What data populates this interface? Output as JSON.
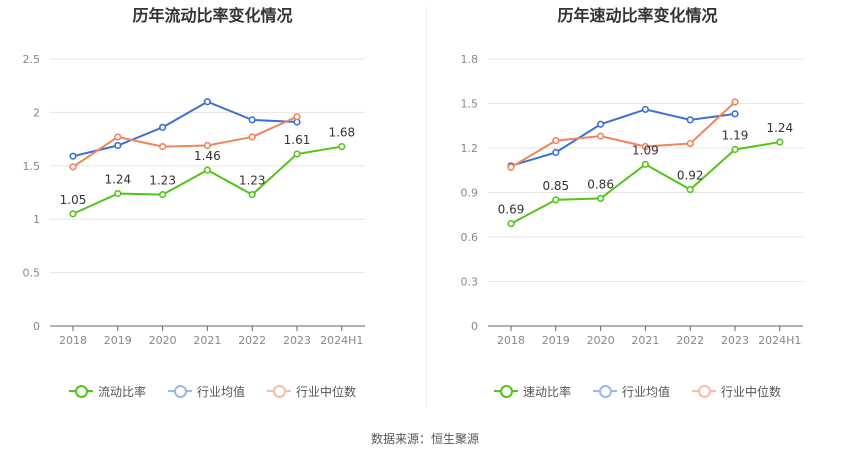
{
  "source": "数据来源：恒生聚源",
  "chart_data": [
    {
      "type": "line",
      "title": "历年流动比率变化情况",
      "categories": [
        "2018",
        "2019",
        "2020",
        "2021",
        "2022",
        "2023",
        "2024H1"
      ],
      "ylim": [
        0,
        2.5
      ],
      "yticks": [
        "0",
        "0.5",
        "1",
        "1.5",
        "2",
        "2.5"
      ],
      "grid": true,
      "legend_position": "bottom",
      "series": [
        {
          "name": "流动比率",
          "color": "#52c41a",
          "values": [
            1.05,
            1.24,
            1.23,
            1.46,
            1.23,
            1.61,
            1.68
          ],
          "labels": [
            "1.05",
            "1.24",
            "1.23",
            "1.46",
            "1.23",
            "1.61",
            "1.68"
          ]
        },
        {
          "name": "行业均值",
          "color": "#3b6fd8",
          "values": [
            1.59,
            1.69,
            1.86,
            2.1,
            1.93,
            1.91,
            null
          ]
        },
        {
          "name": "行业中位数",
          "color": "#f0845a",
          "values": [
            1.49,
            1.77,
            1.68,
            1.69,
            1.77,
            1.96,
            null
          ]
        }
      ]
    },
    {
      "type": "line",
      "title": "历年速动比率变化情况",
      "categories": [
        "2018",
        "2019",
        "2020",
        "2021",
        "2022",
        "2023",
        "2024H1"
      ],
      "ylim": [
        0,
        1.8
      ],
      "yticks": [
        "0",
        "0.3",
        "0.6",
        "0.9",
        "1.2",
        "1.5",
        "1.8"
      ],
      "grid": true,
      "legend_position": "bottom",
      "series": [
        {
          "name": "速动比率",
          "color": "#52c41a",
          "values": [
            0.69,
            0.85,
            0.86,
            1.09,
            0.92,
            1.19,
            1.24
          ],
          "labels": [
            "0.69",
            "0.85",
            "0.86",
            "1.09",
            "0.92",
            "1.19",
            "1.24"
          ]
        },
        {
          "name": "行业均值",
          "color": "#3b6fd8",
          "values": [
            1.08,
            1.17,
            1.36,
            1.46,
            1.39,
            1.43,
            null
          ]
        },
        {
          "name": "行业中位数",
          "color": "#f0845a",
          "values": [
            1.07,
            1.25,
            1.28,
            1.21,
            1.23,
            1.51,
            null
          ]
        }
      ]
    }
  ]
}
